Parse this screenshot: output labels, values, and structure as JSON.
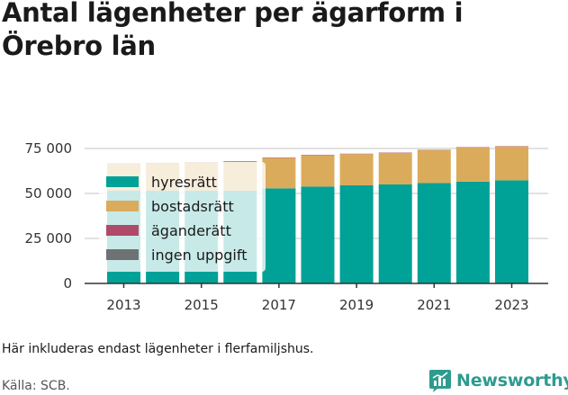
{
  "title": "Antal lägenheter per ägarform i Örebro län",
  "note": "Här inkluderas endast lägenheter i flerfamiljshus.",
  "source": "Källa: SCB.",
  "brand": {
    "name": "Newsworthy",
    "icon": "newsworthy-logo-icon",
    "color": "#2e9b8f"
  },
  "chart_data": {
    "type": "bar",
    "stacked": true,
    "title": "Antal lägenheter per ägarform i Örebro län",
    "xlabel": "",
    "ylabel": "",
    "categories": [
      "2013",
      "2014",
      "2015",
      "2016",
      "2017",
      "2018",
      "2019",
      "2020",
      "2021",
      "2022",
      "2023"
    ],
    "x_tick_labels": [
      "2013",
      "2015",
      "2017",
      "2019",
      "2021",
      "2023"
    ],
    "y_tick_labels": [
      "0",
      "25 000",
      "50 000",
      "75 000"
    ],
    "y_ticks": [
      0,
      25000,
      50000,
      75000
    ],
    "ylim": [
      0,
      80000
    ],
    "grid": "horizontal",
    "legend_position": "top-left",
    "series": [
      {
        "name": "hyresrätt",
        "color": "#00a197",
        "values": [
          51500,
          51500,
          51500,
          51500,
          52800,
          53800,
          54500,
          55000,
          55800,
          56600,
          57300
        ]
      },
      {
        "name": "bostadsrätt",
        "color": "#dbab5c",
        "values": [
          15000,
          15300,
          15700,
          16300,
          17000,
          17500,
          17400,
          17500,
          18200,
          19000,
          18800
        ]
      },
      {
        "name": "äganderätt",
        "color": "#b04a6b",
        "values": [
          200,
          200,
          200,
          200,
          200,
          200,
          200,
          200,
          200,
          200,
          200
        ]
      },
      {
        "name": "ingen uppgift",
        "color": "#6f7273",
        "values": [
          0,
          0,
          0,
          0,
          0,
          0,
          0,
          0,
          0,
          0,
          0
        ]
      }
    ]
  }
}
